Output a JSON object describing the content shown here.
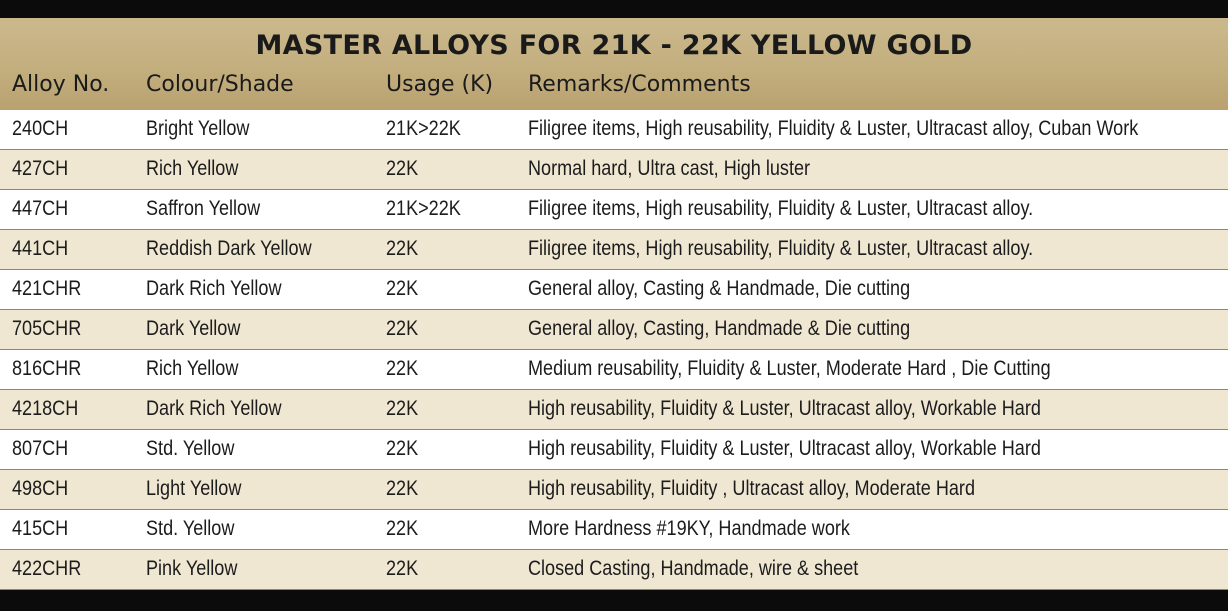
{
  "table": {
    "title": "MASTER ALLOYS FOR 21K - 22K YELLOW GOLD",
    "columns": [
      "Alloy No.",
      "Colour/Shade",
      "Usage (K)",
      "Remarks/Comments"
    ],
    "rows": [
      [
        "240CH",
        "Bright Yellow",
        "21K>22K",
        "Filigree items, High reusability, Fluidity & Luster, Ultracast alloy, Cuban Work"
      ],
      [
        "427CH",
        "Rich  Yellow",
        "22K",
        "Normal hard, Ultra cast, High luster"
      ],
      [
        "447CH",
        "Saffron Yellow",
        "21K>22K",
        "Filigree items, High reusability, Fluidity & Luster, Ultracast alloy."
      ],
      [
        "441CH",
        "Reddish Dark Yellow",
        "22K",
        "Filigree items, High reusability, Fluidity & Luster, Ultracast alloy."
      ],
      [
        "421CHR",
        "Dark Rich Yellow",
        "22K",
        "General alloy, Casting & Handmade, Die cutting"
      ],
      [
        "705CHR",
        "Dark Yellow",
        "22K",
        "General alloy, Casting,  Handmade & Die cutting"
      ],
      [
        "816CHR",
        "Rich Yellow",
        "22K",
        "Medium reusability, Fluidity & Luster, Moderate Hard , Die Cutting"
      ],
      [
        "4218CH",
        "Dark Rich Yellow",
        "22K",
        "High reusability, Fluidity & Luster, Ultracast alloy, Workable Hard"
      ],
      [
        "807CH",
        "Std. Yellow",
        "22K",
        "High reusability, Fluidity & Luster, Ultracast alloy, Workable Hard"
      ],
      [
        "498CH",
        "Light Yellow",
        "22K",
        "High reusability, Fluidity ,  Ultracast alloy, Moderate  Hard"
      ],
      [
        "415CH",
        "Std. Yellow",
        "22K",
        "More Hardness #19KY, Handmade work"
      ],
      [
        "422CHR",
        "Pink Yellow",
        "22K",
        "Closed Casting, Handmade, wire & sheet"
      ]
    ]
  },
  "colors": {
    "header_bg": "#c3ae7e",
    "row_odd": "#ffffff",
    "row_even": "#efe7d2",
    "frame": "#0b0b0b"
  }
}
